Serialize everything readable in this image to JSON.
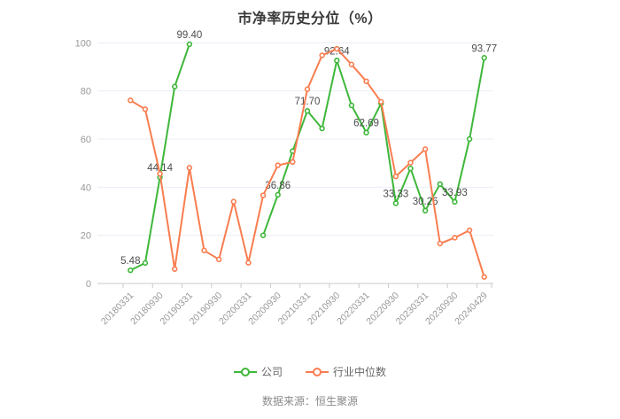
{
  "page": {
    "source": "数据来源：恒生聚源"
  },
  "chart_data": {
    "type": "line",
    "title": "市净率历史分位（%）",
    "ylabel": "",
    "xlabel": "",
    "ylim": [
      0,
      100
    ],
    "y_ticks": [
      0,
      20,
      40,
      60,
      80,
      100
    ],
    "grid": "horizontal-lines-on",
    "legend_position": "bottom-center",
    "x_point_count": 25,
    "x_tick_labels": [
      "20180331",
      "20180930",
      "20190331",
      "20190930",
      "20200331",
      "20200930",
      "20210331",
      "20210930",
      "20220331",
      "20220930",
      "20230331",
      "20230930",
      "20240429"
    ],
    "x_tick_label_indices": [
      0,
      2,
      4,
      6,
      8,
      10,
      12,
      14,
      16,
      18,
      20,
      22,
      24
    ],
    "note": "points are semi-annual/quarterly between labeled ticks; company series has a data gap between 99.40 and 20.0",
    "series": [
      {
        "name": "公司",
        "color": "#3eb73a",
        "values": [
          5.48,
          8.5,
          44.14,
          81.8,
          99.4,
          null,
          null,
          null,
          null,
          20.0,
          36.86,
          55.0,
          71.7,
          64.4,
          92.64,
          74.0,
          62.69,
          74.8,
          33.33,
          47.8,
          30.26,
          41.3,
          33.93,
          60.0,
          93.77
        ],
        "point_labels": [
          {
            "index": 0,
            "text": "5.48"
          },
          {
            "index": 2,
            "text": "44.14"
          },
          {
            "index": 4,
            "text": "99.40"
          },
          {
            "index": 10,
            "text": "36.86"
          },
          {
            "index": 12,
            "text": "71.70"
          },
          {
            "index": 14,
            "text": "92.64"
          },
          {
            "index": 16,
            "text": "62.69"
          },
          {
            "index": 18,
            "text": "33.33"
          },
          {
            "index": 20,
            "text": "30.26"
          },
          {
            "index": 22,
            "text": "33.93"
          },
          {
            "index": 24,
            "text": "93.77"
          }
        ]
      },
      {
        "name": "行业中位数",
        "color": "#f97d50",
        "values": [
          76.1,
          72.4,
          45.6,
          6.0,
          48.1,
          13.7,
          10.0,
          34.0,
          8.6,
          36.6,
          49.1,
          50.5,
          80.7,
          94.8,
          97.5,
          91.0,
          84.0,
          75.5,
          44.5,
          50.2,
          55.8,
          16.6,
          19.0,
          22.1,
          2.7
        ],
        "point_labels": []
      }
    ],
    "colors": {
      "grid_line": "#e9edf4",
      "axis_line": "#c9c9c9",
      "axis_label": "#999999",
      "data_label": "#4d4d4d",
      "title": "#3a3a3a",
      "legend_text": "#666666",
      "background": "#ffffff"
    }
  }
}
